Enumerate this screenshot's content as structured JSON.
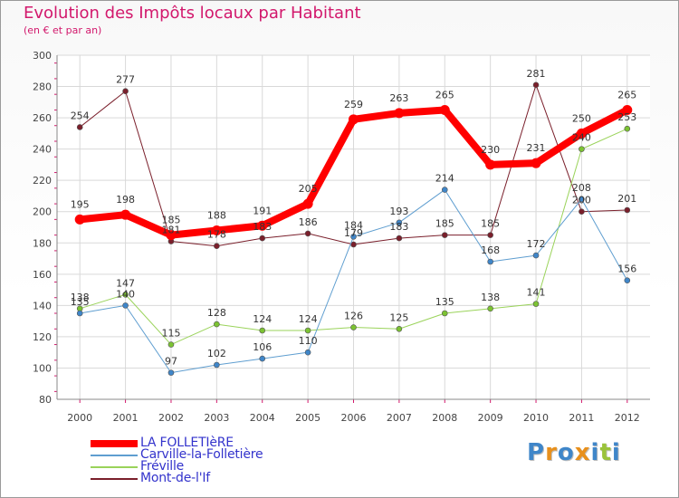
{
  "title": "Evolution des Impôts locaux par Habitant",
  "subtitle": "(en € et par an)",
  "logo": {
    "text": "Proxiti",
    "letter_colors": [
      "#3f86c9",
      "#e8901c",
      "#3f86c9",
      "#e8901c",
      "#3f86c9",
      "#9ac33a",
      "#3f86c9"
    ]
  },
  "chart_data": {
    "type": "line",
    "title": "Evolution des Impôts locaux par Habitant",
    "subtitle": "(en € et par an)",
    "x": [
      "2000",
      "2001",
      "2002",
      "2003",
      "2004",
      "2005",
      "2006",
      "2007",
      "2008",
      "2009",
      "2010",
      "2011",
      "2012"
    ],
    "ylim": [
      80,
      300
    ],
    "yticks": [
      80,
      100,
      120,
      140,
      160,
      180,
      200,
      220,
      240,
      260,
      280,
      300
    ],
    "grid": true,
    "legend_position": "bottom-left",
    "series": [
      {
        "name": "Mont-de-l'If",
        "color": "#7a1f2b",
        "width": 1,
        "dot": "#7a1f2b",
        "values": [
          254,
          277,
          181,
          178,
          183,
          186,
          179,
          183,
          185,
          185,
          281,
          200,
          201
        ],
        "labels": [
          "254",
          "277",
          "181",
          "178",
          "183",
          "186",
          "179",
          "183",
          "185",
          "185",
          "281",
          "200",
          "201"
        ]
      },
      {
        "name": "Fréville",
        "color": "#9ad35a",
        "width": 1,
        "dot": "#7cc332",
        "values": [
          138,
          147,
          115,
          128,
          124,
          124,
          126,
          125,
          135,
          138,
          141,
          240,
          253
        ],
        "labels": [
          "138",
          "147",
          "115",
          "128",
          "124",
          "124",
          "126",
          "125",
          "135",
          "138",
          "141",
          "240",
          "253"
        ]
      },
      {
        "name": "Carville-la-Folletière",
        "color": "#5f9ed0",
        "width": 1,
        "dot": "#3f86c9",
        "values": [
          135,
          140,
          97,
          102,
          106,
          110,
          184,
          193,
          214,
          168,
          172,
          208,
          156
        ],
        "labels": [
          "135",
          "140",
          "97",
          "102",
          "106",
          "110",
          "184",
          "193",
          "214",
          "168",
          "172",
          "208",
          "156"
        ]
      },
      {
        "name": "LA FOLLETIèRE",
        "color": "#ff0000",
        "width": 8,
        "dot": "#ff0000",
        "values": [
          195,
          198,
          185,
          188,
          191,
          205,
          259,
          263,
          265,
          230,
          231,
          250,
          265
        ],
        "labels": [
          "195",
          "198",
          "185",
          "188",
          "191",
          "205",
          "259",
          "263",
          "265",
          "230",
          "231",
          "250",
          "265"
        ]
      }
    ],
    "legend": [
      "LA FOLLETIèRE",
      "Carville-la-Folletière",
      "Fréville",
      "Mont-de-l'If"
    ]
  }
}
